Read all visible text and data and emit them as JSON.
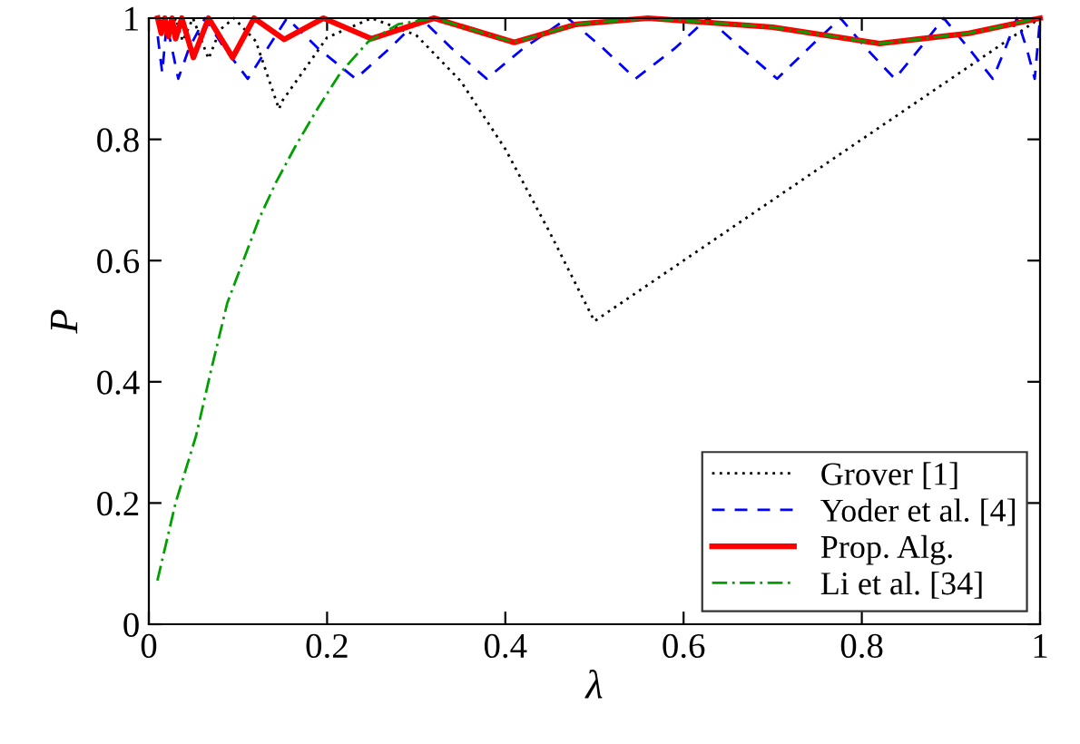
{
  "chart_data": {
    "type": "line",
    "xlabel": "λ",
    "ylabel": "P",
    "xlim": [
      0,
      1
    ],
    "ylim": [
      0,
      1
    ],
    "xticks": [
      0,
      0.2,
      0.4,
      0.6,
      0.8,
      1
    ],
    "yticks": [
      0,
      0.2,
      0.4,
      0.6,
      0.8,
      1
    ],
    "grid": false,
    "legend": "bottom right",
    "marker": "none",
    "series": [
      {
        "name": "Grover [1]",
        "color": "#000000",
        "line_style": "dotted",
        "x": [
          0.01,
          0.0109,
          0.0126,
          0.0146,
          0.017,
          0.0203,
          0.0245,
          0.0302,
          0.038,
          0.0495,
          0.067,
          0.08,
          0.0955,
          0.12,
          0.146,
          0.15,
          0.2,
          0.25,
          0.3,
          0.35,
          0.4,
          0.45,
          0.5,
          1.0
        ],
        "values": [
          0.995,
          1.0,
          0.987,
          1.0,
          0.983,
          1.0,
          0.976,
          1.0,
          0.962,
          1.0,
          0.933,
          0.981,
          1.0,
          0.962,
          0.85,
          0.864,
          0.968,
          1.0,
          0.972,
          0.896,
          0.784,
          0.646,
          0.5,
          1.0
        ]
      },
      {
        "name": "Yoder et al. [4]",
        "color": "#0000ff",
        "line_style": "dashed",
        "x": [
          0.01,
          0.015,
          0.02,
          0.026,
          0.033,
          0.045,
          0.063,
          0.085,
          0.111,
          0.133,
          0.155,
          0.19,
          0.232,
          0.27,
          0.305,
          0.34,
          0.379,
          0.42,
          0.47,
          0.51,
          0.546,
          0.59,
          0.627,
          0.665,
          0.705,
          0.74,
          0.776,
          0.805,
          0.837,
          0.865,
          0.892,
          0.92,
          0.947,
          0.961,
          0.974,
          0.985,
          0.994,
          1.0
        ],
        "values": [
          0.97,
          0.91,
          0.99,
          0.95,
          0.9,
          0.95,
          1.0,
          0.95,
          0.9,
          0.95,
          1.0,
          0.95,
          0.9,
          0.95,
          1.0,
          0.95,
          0.9,
          0.95,
          1.0,
          0.95,
          0.9,
          0.95,
          1.0,
          0.95,
          0.9,
          0.95,
          1.0,
          0.95,
          0.9,
          0.95,
          1.0,
          0.95,
          0.9,
          0.95,
          1.0,
          0.95,
          0.9,
          1.0
        ]
      },
      {
        "name": "Prop. Alg.",
        "color": "#ff0000",
        "line_style": "solid",
        "x": [
          0.01,
          0.014,
          0.018,
          0.022,
          0.026,
          0.03,
          0.037,
          0.05,
          0.067,
          0.094,
          0.118,
          0.152,
          0.196,
          0.25,
          0.32,
          0.41,
          0.48,
          0.56,
          0.7,
          0.82,
          0.92,
          1.0
        ],
        "values": [
          1.0,
          0.975,
          1.0,
          0.97,
          1.0,
          0.966,
          1.0,
          0.935,
          1.0,
          0.935,
          1.0,
          0.965,
          1.0,
          0.966,
          1.0,
          0.96,
          0.99,
          1.0,
          0.985,
          0.958,
          0.975,
          1.0
        ]
      },
      {
        "name": "Li et al. [34]",
        "color": "#00a000",
        "line_style": "dashdot",
        "x": [
          0.0096,
          0.03,
          0.053,
          0.07,
          0.088,
          0.124,
          0.143,
          0.165,
          0.189,
          0.215,
          0.246,
          0.28,
          0.32,
          0.41,
          0.48,
          0.56,
          0.7,
          0.82,
          0.92,
          1.0
        ],
        "values": [
          0.072,
          0.2,
          0.311,
          0.42,
          0.53,
          0.67,
          0.73,
          0.79,
          0.85,
          0.91,
          0.961,
          0.99,
          1.0,
          0.96,
          0.99,
          1.0,
          0.985,
          0.958,
          0.975,
          1.0
        ]
      }
    ]
  }
}
